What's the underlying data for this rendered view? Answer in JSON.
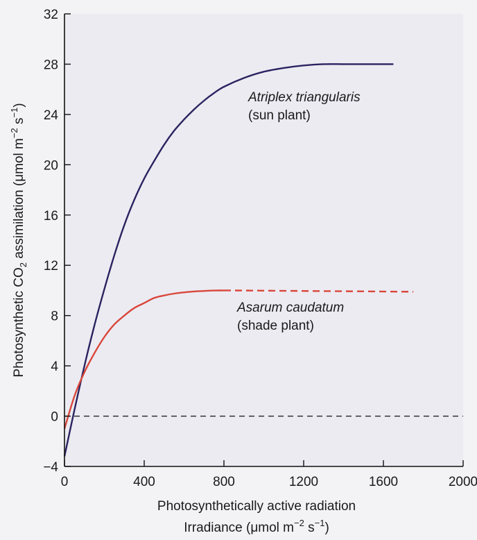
{
  "chart_data": {
    "type": "line",
    "xlabel_line1": "Photosynthetically active radiation",
    "xlabel_line2_text": "Irradiance (μmol m",
    "xlabel_line2_exp1": "−2",
    "xlabel_line2_mid": " s",
    "xlabel_line2_exp2": "−1",
    "xlabel_line2_end": ")",
    "ylabel_pre": "Photosynthetic CO",
    "ylabel_sub": "2",
    "ylabel_mid": " assimilation (μmol m",
    "ylabel_exp1": "−2",
    "ylabel_s": " s",
    "ylabel_exp2": "−1",
    "ylabel_end": ")",
    "xlim": [
      0,
      2000
    ],
    "ylim": [
      -4,
      32
    ],
    "xticks": [
      0,
      400,
      800,
      1200,
      1600,
      2000
    ],
    "xtick_labels": [
      "0",
      "400",
      "800",
      "1200",
      "1600",
      "2000"
    ],
    "yticks": [
      -4,
      0,
      4,
      8,
      12,
      16,
      20,
      24,
      28,
      32
    ],
    "ytick_labels": [
      "−4",
      "0",
      "4",
      "8",
      "12",
      "16",
      "20",
      "24",
      "28",
      "32"
    ],
    "grid": false,
    "zero_line": {
      "y": 0,
      "style": "dashed"
    },
    "series": [
      {
        "color": "#2a2360",
        "x": [
          0,
          50,
          100,
          150,
          200,
          250,
          300,
          350,
          400,
          450,
          500,
          550,
          600,
          650,
          700,
          750,
          800,
          900,
          1000,
          1100,
          1200,
          1300,
          1400,
          1500,
          1650
        ],
        "y": [
          -3.2,
          0.5,
          4.0,
          7.2,
          10.1,
          12.8,
          15.2,
          17.2,
          18.9,
          20.3,
          21.6,
          22.7,
          23.6,
          24.4,
          25.1,
          25.7,
          26.2,
          26.9,
          27.4,
          27.7,
          27.9,
          28.0,
          28.0,
          28.0,
          28.0
        ]
      },
      {
        "color": "#d9473a",
        "x": [
          0,
          50,
          100,
          150,
          200,
          250,
          300,
          350,
          400,
          450,
          500,
          550,
          600,
          650,
          700,
          750,
          800
        ],
        "y": [
          -1.0,
          1.6,
          3.5,
          5.0,
          6.3,
          7.3,
          8.0,
          8.6,
          9.0,
          9.4,
          9.6,
          9.75,
          9.85,
          9.92,
          9.96,
          9.99,
          10.0
        ]
      },
      {
        "color": "#d9473a",
        "dashed": true,
        "x": [
          800,
          1750
        ],
        "y": [
          10.0,
          9.9
        ]
      }
    ],
    "annotations": [
      {
        "line1": "Atriplex triangularis",
        "line2": "(sun plant)"
      },
      {
        "line1": "Asarum caudatum",
        "line2": "(shade plant)"
      }
    ]
  }
}
